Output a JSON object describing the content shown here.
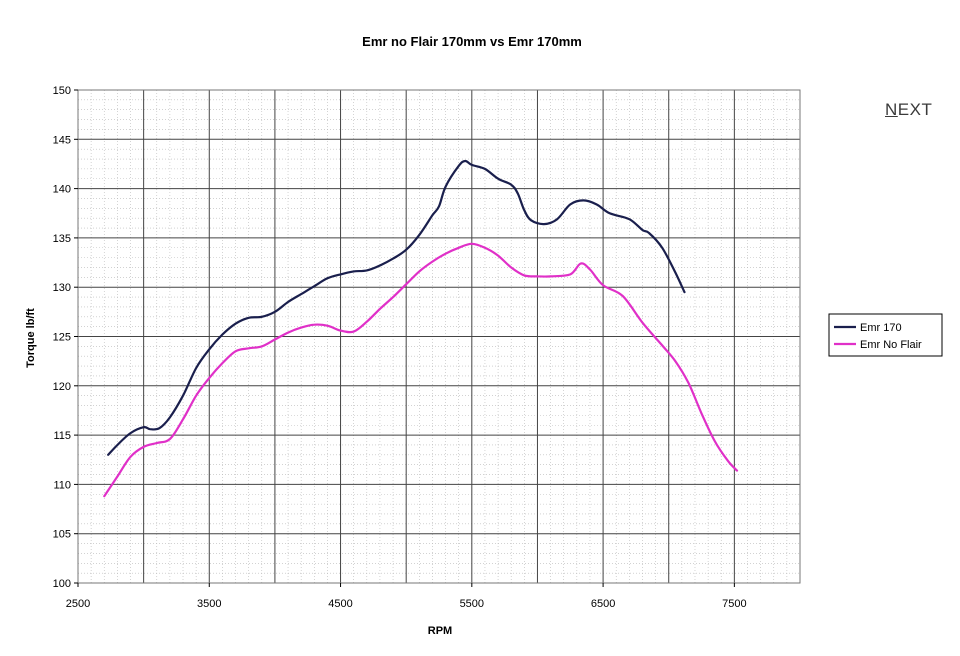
{
  "nav": {
    "next_label": "NEXT"
  },
  "chart_data": {
    "type": "line",
    "title": "Emr no Flair 170mm vs Emr 170mm",
    "xlabel": "RPM",
    "ylabel": "Torque lb/ft",
    "xlim": [
      2500,
      8000
    ],
    "ylim": [
      100,
      150
    ],
    "x_ticks": [
      "2500",
      "3500",
      "4500",
      "5500",
      "6500",
      "7500"
    ],
    "y_ticks": [
      "100",
      "105",
      "110",
      "115",
      "120",
      "125",
      "130",
      "135",
      "140",
      "145",
      "150"
    ],
    "grid": true,
    "legend_position": "right",
    "series": [
      {
        "name": "Emr 170",
        "color": "#1a1f4d",
        "points": [
          [
            2730,
            113.0
          ],
          [
            2800,
            114.0
          ],
          [
            2900,
            115.2
          ],
          [
            3000,
            115.8
          ],
          [
            3050,
            115.6
          ],
          [
            3120,
            115.7
          ],
          [
            3200,
            116.8
          ],
          [
            3300,
            119.0
          ],
          [
            3400,
            121.8
          ],
          [
            3500,
            123.7
          ],
          [
            3600,
            125.2
          ],
          [
            3700,
            126.3
          ],
          [
            3800,
            126.9
          ],
          [
            3900,
            127.0
          ],
          [
            4000,
            127.5
          ],
          [
            4100,
            128.5
          ],
          [
            4200,
            129.3
          ],
          [
            4300,
            130.1
          ],
          [
            4400,
            130.9
          ],
          [
            4500,
            131.3
          ],
          [
            4600,
            131.6
          ],
          [
            4700,
            131.7
          ],
          [
            4800,
            132.2
          ],
          [
            4900,
            132.9
          ],
          [
            5000,
            133.8
          ],
          [
            5100,
            135.3
          ],
          [
            5200,
            137.3
          ],
          [
            5250,
            138.2
          ],
          [
            5300,
            140.2
          ],
          [
            5400,
            142.3
          ],
          [
            5450,
            142.8
          ],
          [
            5500,
            142.4
          ],
          [
            5600,
            142.0
          ],
          [
            5700,
            141.0
          ],
          [
            5800,
            140.4
          ],
          [
            5850,
            139.5
          ],
          [
            5900,
            137.8
          ],
          [
            5950,
            136.8
          ],
          [
            6050,
            136.4
          ],
          [
            6150,
            136.9
          ],
          [
            6250,
            138.4
          ],
          [
            6350,
            138.8
          ],
          [
            6450,
            138.4
          ],
          [
            6550,
            137.5
          ],
          [
            6700,
            136.9
          ],
          [
            6800,
            135.8
          ],
          [
            6850,
            135.5
          ],
          [
            6950,
            134.0
          ],
          [
            7050,
            131.5
          ],
          [
            7120,
            129.5
          ]
        ]
      },
      {
        "name": "Emr No Flair",
        "color": "#e030c8",
        "points": [
          [
            2700,
            108.8
          ],
          [
            2800,
            110.8
          ],
          [
            2900,
            112.8
          ],
          [
            3000,
            113.8
          ],
          [
            3100,
            114.2
          ],
          [
            3200,
            114.6
          ],
          [
            3300,
            116.6
          ],
          [
            3400,
            119.0
          ],
          [
            3500,
            120.8
          ],
          [
            3600,
            122.3
          ],
          [
            3700,
            123.5
          ],
          [
            3800,
            123.8
          ],
          [
            3900,
            124.0
          ],
          [
            4000,
            124.7
          ],
          [
            4100,
            125.4
          ],
          [
            4200,
            125.9
          ],
          [
            4300,
            126.2
          ],
          [
            4400,
            126.1
          ],
          [
            4500,
            125.6
          ],
          [
            4600,
            125.5
          ],
          [
            4700,
            126.5
          ],
          [
            4800,
            127.8
          ],
          [
            4900,
            129.0
          ],
          [
            5000,
            130.3
          ],
          [
            5100,
            131.6
          ],
          [
            5200,
            132.6
          ],
          [
            5300,
            133.4
          ],
          [
            5400,
            134.0
          ],
          [
            5500,
            134.4
          ],
          [
            5600,
            134.0
          ],
          [
            5700,
            133.2
          ],
          [
            5800,
            132.0
          ],
          [
            5900,
            131.2
          ],
          [
            6000,
            131.1
          ],
          [
            6100,
            131.1
          ],
          [
            6250,
            131.3
          ],
          [
            6330,
            132.4
          ],
          [
            6400,
            131.8
          ],
          [
            6500,
            130.2
          ],
          [
            6650,
            129.1
          ],
          [
            6800,
            126.4
          ],
          [
            6950,
            124.1
          ],
          [
            7050,
            122.5
          ],
          [
            7150,
            120.3
          ],
          [
            7250,
            117.2
          ],
          [
            7350,
            114.4
          ],
          [
            7450,
            112.4
          ],
          [
            7520,
            111.4
          ]
        ]
      }
    ]
  }
}
